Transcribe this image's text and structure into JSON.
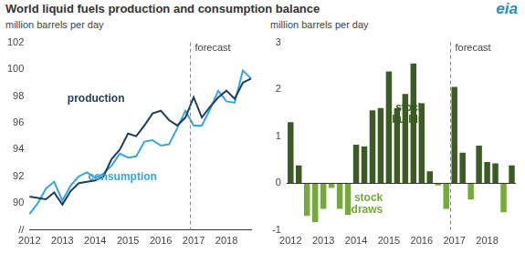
{
  "title": "World liquid fuels production and consumption balance",
  "logo": "eia",
  "chart_data": [
    {
      "type": "line",
      "subtitle": "million barrels per day",
      "categories": [
        "2012",
        null,
        null,
        null,
        "2013",
        null,
        null,
        null,
        "2014",
        null,
        null,
        null,
        "2015",
        null,
        null,
        null,
        "2016",
        null,
        null,
        null,
        "2017",
        null,
        null,
        null,
        "2018",
        null,
        null,
        null
      ],
      "series": [
        {
          "name": "production",
          "color": "#1d3e5c",
          "values": [
            90.5,
            90.4,
            90.3,
            90.8,
            89.9,
            90.9,
            91.5,
            91.6,
            91.7,
            92.0,
            93.3,
            94.0,
            95.2,
            95.0,
            95.8,
            96.7,
            96.9,
            96.2,
            95.8,
            96.4,
            97.9,
            96.4,
            97.2,
            97.9,
            98.4,
            97.8,
            99.0,
            99.3
          ]
        },
        {
          "name": "consumption",
          "color": "#35a7dd",
          "values": [
            89.2,
            90.0,
            91.1,
            91.6,
            90.2,
            91.3,
            92.0,
            92.3,
            91.9,
            92.2,
            92.8,
            93.7,
            93.4,
            93.5,
            94.6,
            94.7,
            94.3,
            94.4,
            95.6,
            96.9,
            95.8,
            95.8,
            97.0,
            98.4,
            97.6,
            97.5,
            99.9,
            99.3
          ]
        }
      ],
      "ylim": [
        88,
        102
      ],
      "yticks": [
        {
          "value": 88,
          "label": "//"
        },
        90,
        92,
        94,
        96,
        98,
        100,
        102
      ],
      "grid": false,
      "annotations": [
        {
          "text": "forecast",
          "x": 19.5
        }
      ]
    },
    {
      "type": "bar",
      "subtitle": "million barrels per day",
      "categories": [
        "2012",
        null,
        null,
        null,
        "2013",
        null,
        null,
        null,
        "2014",
        null,
        null,
        null,
        "2015",
        null,
        null,
        null,
        "2016",
        null,
        null,
        null,
        "2017",
        null,
        null,
        null,
        "2018",
        null,
        null,
        null
      ],
      "series": [
        {
          "name": "stock builds",
          "color": "#3b5a24",
          "values": [
            1.3,
            0.38,
            null,
            null,
            null,
            null,
            null,
            null,
            0.82,
            0.78,
            1.55,
            1.6,
            2.38,
            1.6,
            1.9,
            2.55,
            1.7,
            0.25,
            null,
            null,
            2.05,
            0.65,
            null,
            0.8,
            0.45,
            0.42,
            null,
            0.38
          ]
        },
        {
          "name": "stock draws",
          "color": "#76a83c",
          "values": [
            null,
            null,
            -0.7,
            -0.83,
            -0.55,
            -0.1,
            -0.55,
            -0.68,
            null,
            null,
            null,
            null,
            null,
            null,
            null,
            null,
            null,
            null,
            -0.05,
            -0.55,
            null,
            null,
            -0.35,
            null,
            null,
            null,
            -0.62,
            null
          ]
        }
      ],
      "ylim": [
        -1,
        3
      ],
      "yticks": [
        -1,
        0,
        1,
        2,
        3
      ],
      "grid": false,
      "annotations": [
        {
          "text": "forecast",
          "x": 19.5
        }
      ]
    }
  ]
}
